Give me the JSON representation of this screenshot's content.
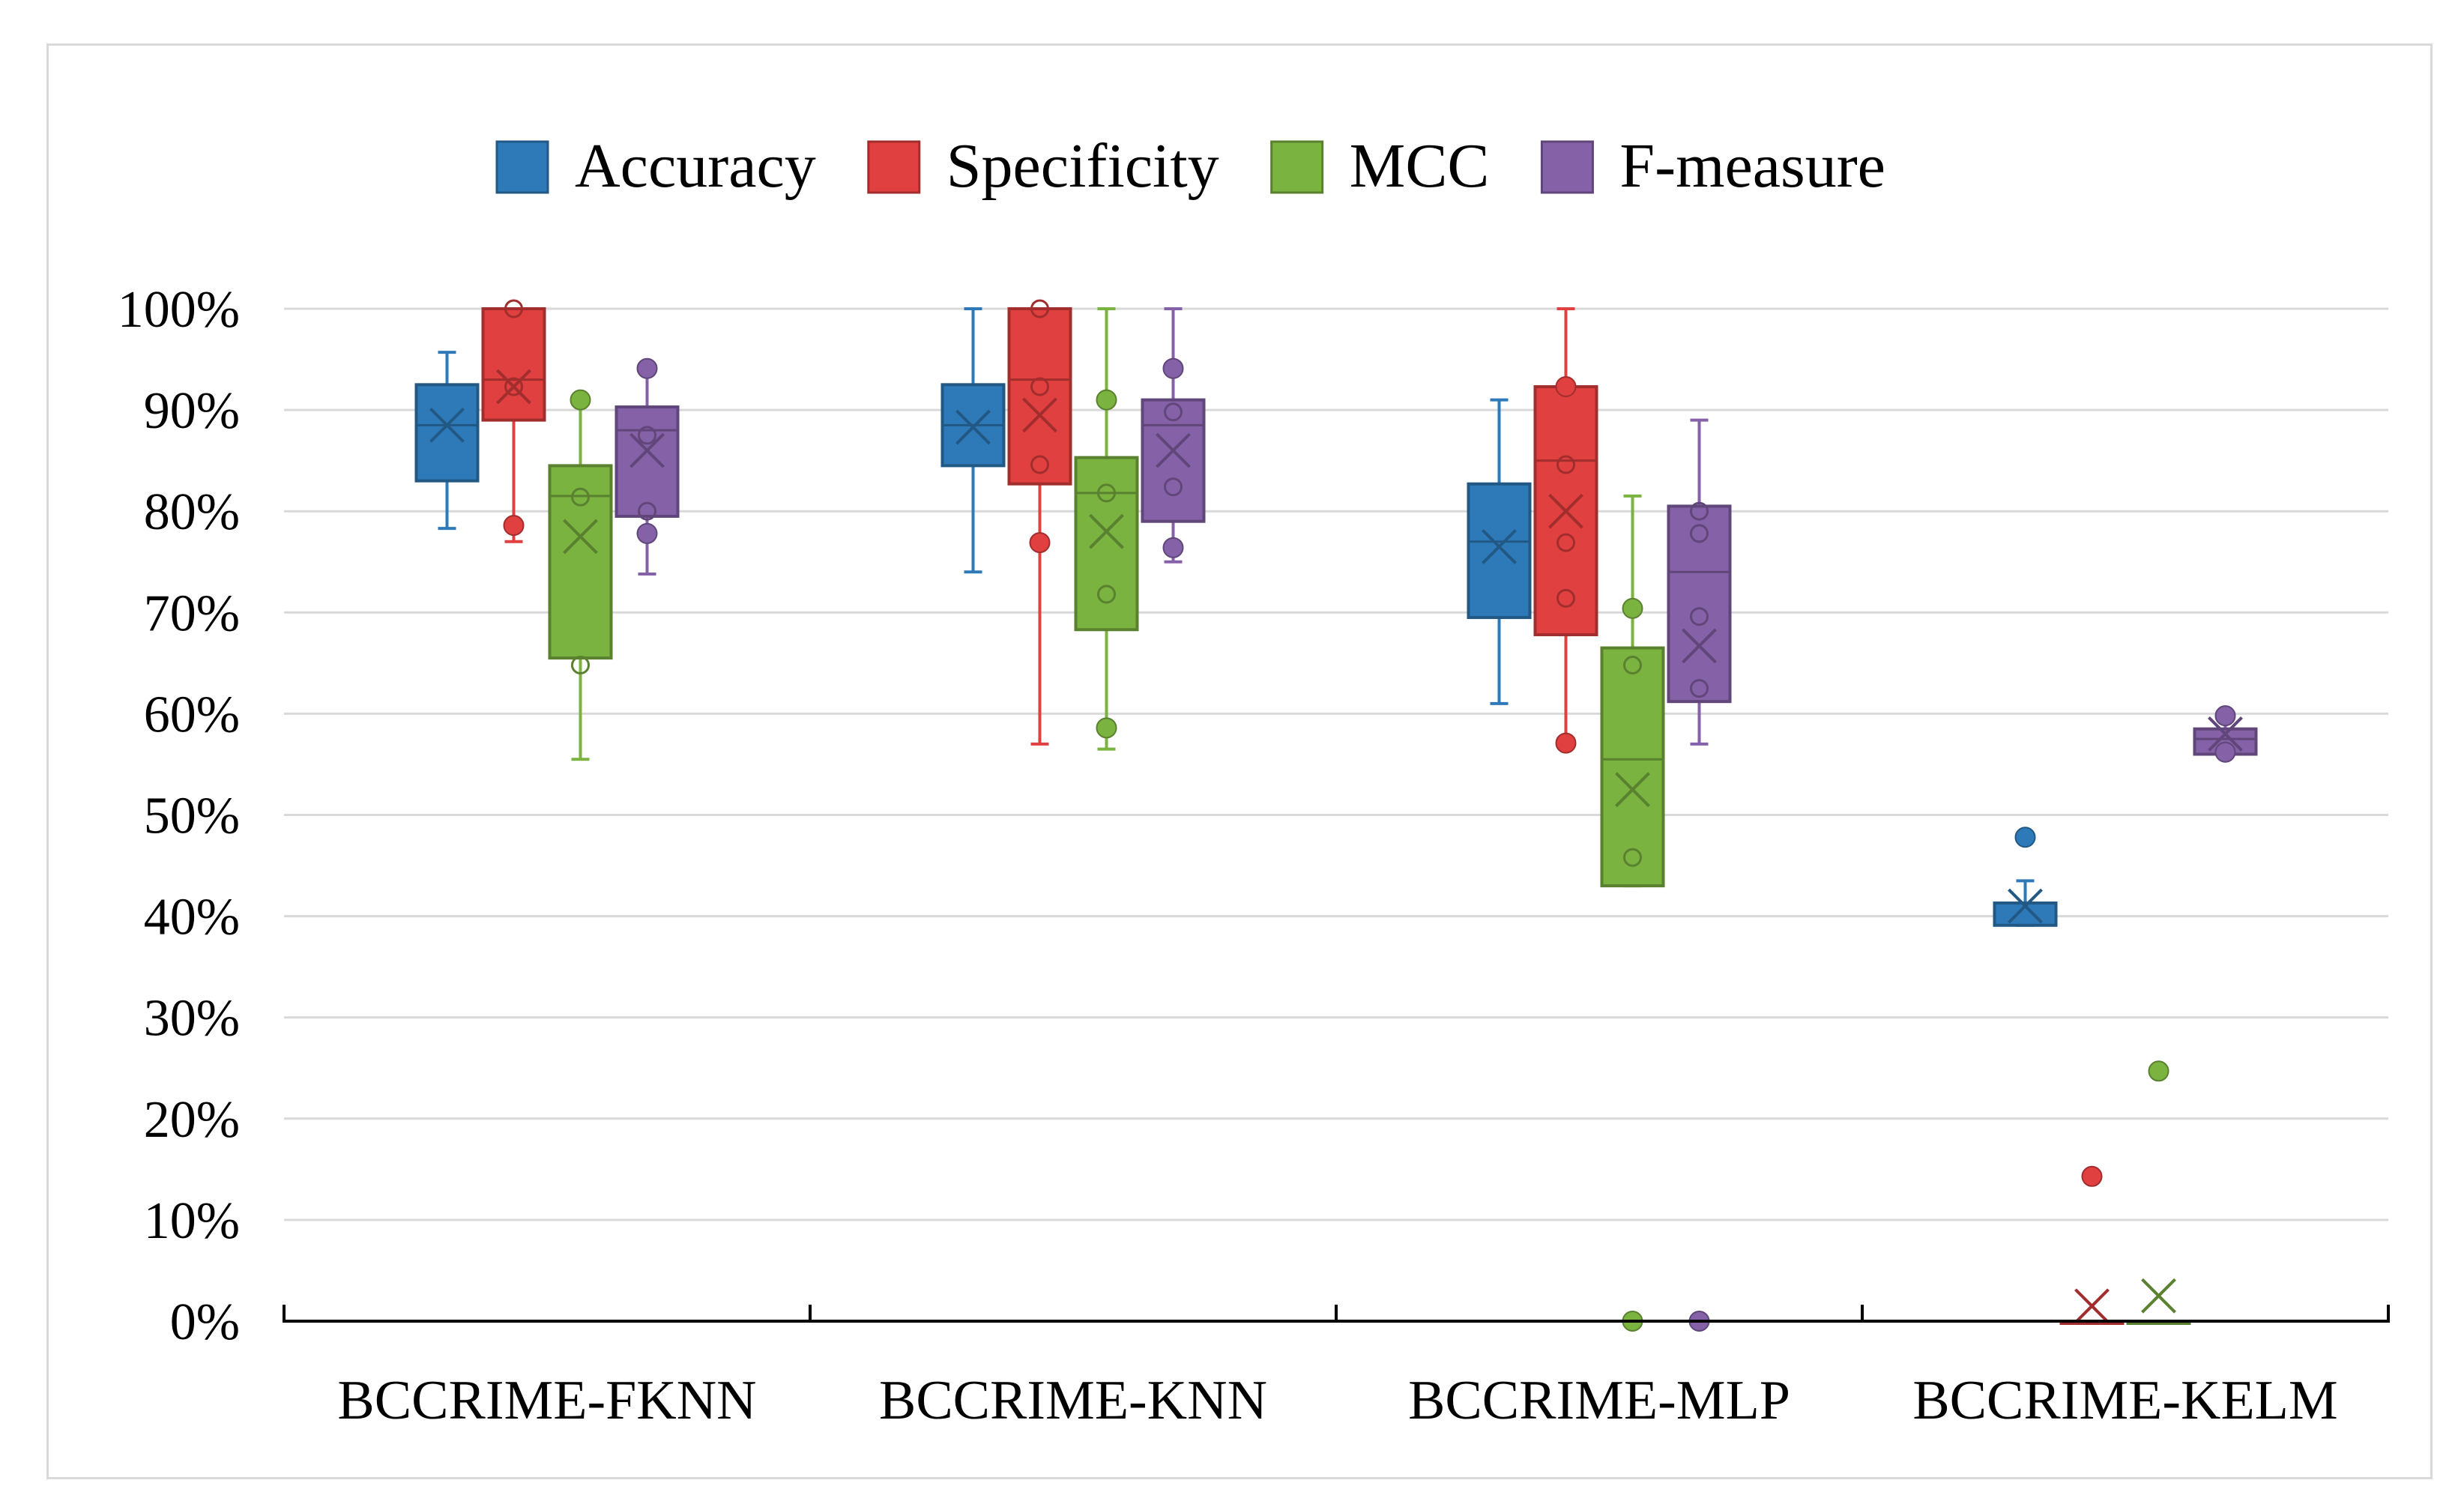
{
  "chart_data": {
    "type": "box",
    "title": "",
    "xlabel": "",
    "ylabel": "",
    "ylim": [
      0,
      100
    ],
    "yticks": [
      "0%",
      "10%",
      "20%",
      "30%",
      "40%",
      "50%",
      "60%",
      "70%",
      "80%",
      "90%",
      "100%"
    ],
    "grid": true,
    "legend_position": "top-center",
    "categories": [
      "BCCRIME-FKNN",
      "BCCRIME-KNN",
      "BCCRIME-MLP",
      "BCCRIME-KELM"
    ],
    "series": [
      {
        "name": "Accuracy",
        "color": "#2e7ab8",
        "stats": [
          {
            "min": 78.3,
            "q1": 83.0,
            "median": 88.5,
            "q3": 92.5,
            "max": 95.7,
            "mean": 88.5,
            "points": [],
            "outliers": []
          },
          {
            "min": 74.0,
            "q1": 84.5,
            "median": 88.5,
            "q3": 92.5,
            "max": 100.0,
            "mean": 88.3,
            "points": [],
            "outliers": []
          },
          {
            "min": 61.0,
            "q1": 69.5,
            "median": 77.0,
            "q3": 82.7,
            "max": 91.0,
            "mean": 76.5,
            "points": [],
            "outliers": []
          },
          {
            "min": 39.1,
            "q1": 39.1,
            "median": 41.3,
            "q3": 41.3,
            "max": 43.5,
            "mean": 41.0,
            "points": [],
            "outliers": [
              47.8
            ]
          }
        ]
      },
      {
        "name": "Specificity",
        "color": "#e0403f",
        "stats": [
          {
            "min": 77.0,
            "q1": 89.0,
            "median": 93.0,
            "q3": 100.0,
            "max": 100.0,
            "mean": 92.3,
            "points": [
              92.3,
              100.0
            ],
            "outliers": [
              78.6
            ]
          },
          {
            "min": 57.0,
            "q1": 82.7,
            "median": 93.0,
            "q3": 100.0,
            "max": 100.0,
            "mean": 89.5,
            "points": [
              84.6,
              92.3,
              100.0
            ],
            "outliers": [
              76.9
            ]
          },
          {
            "min": 57.1,
            "q1": 67.8,
            "median": 85.0,
            "q3": 92.3,
            "max": 100.0,
            "mean": 80.0,
            "points": [
              71.4,
              76.9,
              84.6
            ],
            "outliers": [
              92.3,
              57.1
            ]
          },
          {
            "min": 0.0,
            "q1": 0.0,
            "median": 0.0,
            "q3": 0.0,
            "max": 0.0,
            "mean": 1.5,
            "points": [],
            "outliers": [
              14.3
            ]
          }
        ]
      },
      {
        "name": "MCC",
        "color": "#7bb341",
        "stats": [
          {
            "min": 55.5,
            "q1": 65.5,
            "median": 81.5,
            "q3": 84.5,
            "max": 91.0,
            "mean": 77.5,
            "points": [
              64.8,
              81.4
            ],
            "outliers": [
              91.0
            ]
          },
          {
            "min": 56.5,
            "q1": 68.3,
            "median": 81.8,
            "q3": 85.3,
            "max": 100.0,
            "mean": 78.0,
            "points": [
              71.8,
              81.8
            ],
            "outliers": [
              58.6,
              91.0
            ]
          },
          {
            "min": 43.0,
            "q1": 43.0,
            "median": 55.5,
            "q3": 66.5,
            "max": 81.5,
            "mean": 52.5,
            "points": [
              45.8,
              64.8
            ],
            "outliers": [
              70.4,
              0.0
            ]
          },
          {
            "min": 0.0,
            "q1": 0.0,
            "median": 0.0,
            "q3": 0.0,
            "max": 0.0,
            "mean": 2.5,
            "points": [],
            "outliers": [
              24.7
            ]
          }
        ]
      },
      {
        "name": "F-measure",
        "color": "#8561a8",
        "stats": [
          {
            "min": 73.8,
            "q1": 79.5,
            "median": 88.0,
            "q3": 90.3,
            "max": 94.0,
            "mean": 86.0,
            "points": [
              80.0,
              87.5
            ],
            "outliers": [
              94.1,
              77.8
            ]
          },
          {
            "min": 75.0,
            "q1": 79.0,
            "median": 88.5,
            "q3": 91.0,
            "max": 100.0,
            "mean": 86.0,
            "points": [
              82.4,
              89.8
            ],
            "outliers": [
              94.1,
              76.4
            ]
          },
          {
            "min": 57.0,
            "q1": 61.2,
            "median": 74.0,
            "q3": 80.5,
            "max": 89.0,
            "mean": 66.7,
            "points": [
              62.5,
              69.6,
              77.8,
              80.0
            ],
            "outliers": [
              0.0
            ]
          },
          {
            "min": 56.0,
            "q1": 56.0,
            "median": 57.5,
            "q3": 58.5,
            "max": 60.0,
            "mean": 58.0,
            "points": [],
            "outliers": [
              59.8,
              56.2
            ]
          }
        ]
      }
    ]
  }
}
